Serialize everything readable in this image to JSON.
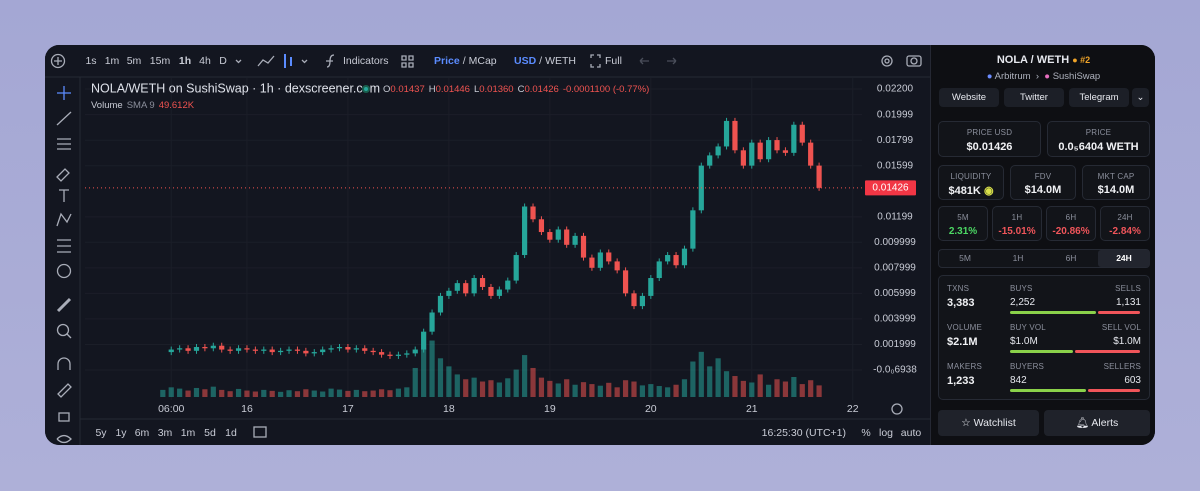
{
  "toolbar": {
    "intervals": [
      "1s",
      "1m",
      "5m",
      "15m",
      "1h",
      "4h",
      "D"
    ],
    "indicators": "Indicators",
    "price_toggle": {
      "active": "Price",
      "separator": "/",
      "other": "MCap"
    },
    "currency_toggle": {
      "active": "USD",
      "separator": "/",
      "other": "WETH"
    },
    "full": "Full"
  },
  "price_chart": {
    "title": "NOLA/WETH on SushiSwap · 1h · dexscreener.com",
    "ohlc": [
      {
        "label": "O",
        "value": "0.01437"
      },
      {
        "label": "H",
        "value": "0.01446"
      },
      {
        "label": "L",
        "value": "0.01360"
      },
      {
        "label": "C",
        "value": "0.01426"
      }
    ],
    "change": "-0.0001100 (-0.77%)",
    "volume_label": "Volume",
    "volume_sma": "SMA 9",
    "volume_value": "49.612K",
    "last_price": 0.01426,
    "up_color": "#26a69a",
    "down_color": "#ef5350",
    "xlim": [
      -38.5,
      146.2
    ],
    "ylim": [
      -0.00235,
      0.02286
    ],
    "xticks": [
      {
        "value": -18,
        "label": "06:00"
      },
      {
        "value": 0,
        "label": "16"
      },
      {
        "value": 24,
        "label": "17"
      },
      {
        "value": 48,
        "label": "18"
      },
      {
        "value": 72,
        "label": "19"
      },
      {
        "value": 96,
        "label": "20"
      },
      {
        "value": 120,
        "label": "21"
      },
      {
        "value": 144,
        "label": "22"
      }
    ],
    "yticks": [
      {
        "value": 0.022,
        "label": "0.02200"
      },
      0.01999,
      0.01799,
      0.01599,
      0.01199,
      0.009999,
      0.007999,
      0.005999,
      0.003999,
      0.001999,
      {
        "value": -6.938e-08,
        "label": "-0.0₀6938"
      }
    ],
    "x": [
      -20,
      -18,
      -16,
      -14,
      -12,
      -10,
      -8,
      -6,
      -4,
      -2,
      0,
      2,
      4,
      6,
      8,
      10,
      12,
      14,
      16,
      18,
      20,
      22,
      24,
      26,
      28,
      30,
      32,
      34,
      36,
      38,
      40,
      42,
      44,
      46,
      48,
      50,
      52,
      54,
      56,
      58,
      60,
      62,
      64,
      66,
      68,
      70,
      72,
      74,
      76,
      78,
      80,
      82,
      84,
      86,
      88,
      90,
      92,
      94,
      96,
      98,
      100,
      102,
      104,
      106,
      108,
      110,
      112,
      114,
      116,
      118,
      120,
      122,
      124,
      126,
      128,
      130,
      132,
      134,
      136
    ],
    "close": [
      0.0014,
      0.0016,
      0.0017,
      0.0015,
      0.0018,
      0.0017,
      0.0019,
      0.0016,
      0.0015,
      0.0017,
      0.0016,
      0.0015,
      0.0016,
      0.0014,
      0.0015,
      0.0016,
      0.0015,
      0.0013,
      0.0014,
      0.0016,
      0.0017,
      0.0018,
      0.0016,
      0.0017,
      0.0015,
      0.0014,
      0.0012,
      0.0011,
      0.0012,
      0.0013,
      0.0016,
      0.003,
      0.0045,
      0.0058,
      0.0062,
      0.0068,
      0.006,
      0.0072,
      0.0065,
      0.0058,
      0.0063,
      0.007,
      0.009,
      0.0128,
      0.0118,
      0.0108,
      0.0102,
      0.011,
      0.0098,
      0.0105,
      0.0088,
      0.008,
      0.0092,
      0.0085,
      0.0078,
      0.006,
      0.005,
      0.0058,
      0.0072,
      0.0085,
      0.009,
      0.0082,
      0.0095,
      0.0125,
      0.016,
      0.0168,
      0.0175,
      0.0195,
      0.0172,
      0.016,
      0.0178,
      0.0165,
      0.018,
      0.0172,
      0.017,
      0.0192,
      0.0178,
      0.016,
      0.01426
    ],
    "volume": [
      22000,
      30000,
      26000,
      20000,
      28000,
      24000,
      32000,
      22000,
      18000,
      25000,
      20000,
      17000,
      22000,
      19000,
      16000,
      21000,
      18000,
      24000,
      20000,
      17000,
      26000,
      23000,
      19000,
      22000,
      18000,
      20000,
      24000,
      21000,
      26000,
      30000,
      90000,
      150000,
      175000,
      120000,
      95000,
      70000,
      55000,
      60000,
      48000,
      52000,
      45000,
      58000,
      85000,
      130000,
      90000,
      60000,
      50000,
      42000,
      55000,
      38000,
      46000,
      40000,
      35000,
      44000,
      30000,
      52000,
      48000,
      36000,
      40000,
      34000,
      30000,
      38000,
      55000,
      110000,
      140000,
      95000,
      120000,
      80000,
      65000,
      50000,
      45000,
      70000,
      38000,
      55000,
      48000,
      62000,
      40000,
      52000,
      36000
    ]
  },
  "bottom_bar": {
    "ranges": [
      "5y",
      "1y",
      "6m",
      "3m",
      "1m",
      "5d",
      "1d"
    ],
    "clock": "16:25:30 (UTC+1)",
    "scale_options": [
      "%",
      "log",
      "auto"
    ]
  },
  "pair": {
    "base": "NOLA",
    "separator": "/",
    "quote": "WETH",
    "rank": "#2",
    "chain": "Arbitrum",
    "dex": "SushiSwap"
  },
  "links": [
    "Website",
    "Twitter",
    "Telegram"
  ],
  "stats": {
    "price_usd": {
      "label": "PRICE USD",
      "value": "$0.01426"
    },
    "price": {
      "label": "PRICE",
      "value": "0.0₅6404 WETH"
    },
    "liquidity": {
      "label": "LIQUIDITY",
      "value": "$481K"
    },
    "fdv": {
      "label": "FDV",
      "value": "$14.0M"
    },
    "mkt_cap": {
      "label": "MKT CAP",
      "value": "$14.0M"
    }
  },
  "changes": [
    {
      "label": "5M",
      "value": "2.31%"
    },
    {
      "label": "1H",
      "value": "-15.01%"
    },
    {
      "label": "6H",
      "value": "-20.86%"
    },
    {
      "label": "24H",
      "value": "-2.84%"
    }
  ],
  "tabs": [
    "5M",
    "1H",
    "6H",
    "24H"
  ],
  "activity": [
    {
      "label": "TXNS",
      "value": "3,383",
      "left_label": "BUYS",
      "left": "2,252",
      "right_label": "SELLS",
      "right": "1,131"
    },
    {
      "label": "VOLUME",
      "value": "$2.1M",
      "left_label": "BUY VOL",
      "left": "$1.0M",
      "right_label": "SELL VOL",
      "right": "$1.0M"
    },
    {
      "label": "MAKERS",
      "value": "1,233",
      "left_label": "BUYERS",
      "left": "842",
      "right_label": "SELLERS",
      "right": "603"
    }
  ],
  "actions": [
    "Watchlist",
    "Alerts"
  ]
}
